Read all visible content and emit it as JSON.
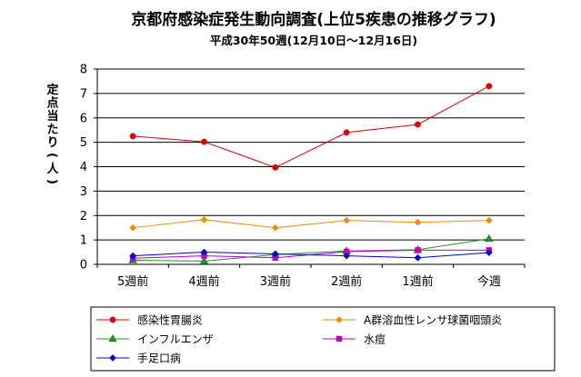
{
  "chart_data": {
    "type": "line",
    "title": "京都府感染症発生動向調査(上位5疾患の推移グラフ)",
    "subtitle": "平成30年50週(12月10日～12月16日)",
    "xlabel": "",
    "ylabel": "定点当たり(人)",
    "ylim": [
      0,
      8
    ],
    "ytick_labels": [
      "0",
      "1",
      "2",
      "3",
      "4",
      "5",
      "6",
      "7",
      "8"
    ],
    "categories": [
      "5週前",
      "4週前",
      "3週前",
      "2週前",
      "1週前",
      "今週"
    ],
    "grid": true,
    "legend_position": "bottom",
    "series": [
      {
        "name": "感染性胃腸炎",
        "color": "#e00000",
        "marker": "circle",
        "values": [
          5.25,
          5.02,
          3.97,
          5.4,
          5.73,
          7.3
        ]
      },
      {
        "name": "A群溶血性レンサ球菌咽頭炎",
        "color": "#f08c00",
        "marker": "diamond",
        "values": [
          1.5,
          1.83,
          1.5,
          1.8,
          1.72,
          1.8
        ]
      },
      {
        "name": "インフルエンザ",
        "color": "#1a9c1a",
        "marker": "triangle",
        "values": [
          0.17,
          0.13,
          0.4,
          0.55,
          0.6,
          1.05
        ]
      },
      {
        "name": "水痘",
        "color": "#c000c0",
        "marker": "square",
        "values": [
          0.25,
          0.35,
          0.27,
          0.52,
          0.58,
          0.58
        ]
      },
      {
        "name": "手足口病",
        "color": "#0000e0",
        "marker": "diamond",
        "values": [
          0.35,
          0.5,
          0.43,
          0.35,
          0.27,
          0.48
        ]
      }
    ]
  }
}
